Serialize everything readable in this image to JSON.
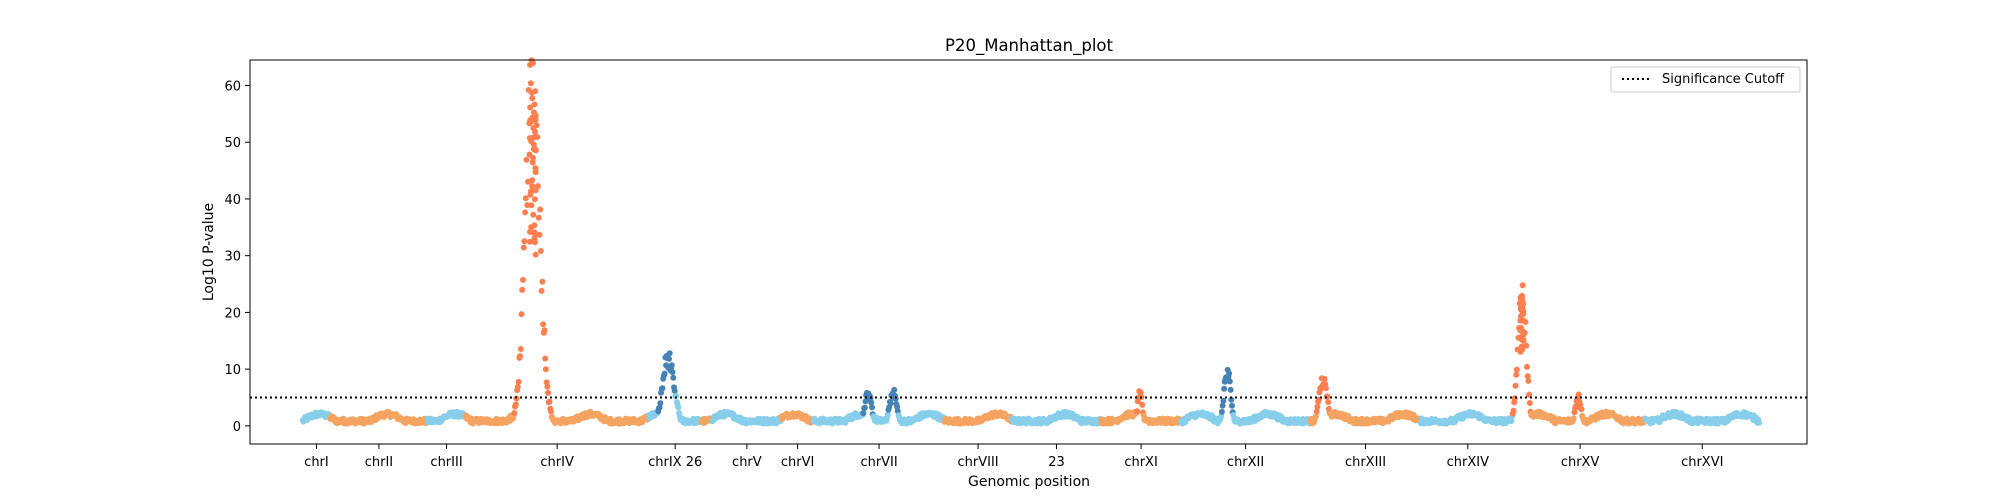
{
  "chart_data": {
    "type": "scatter",
    "title": "P20_Manhattan_plot",
    "xlabel": "Genomic position",
    "ylabel": "Log10 P-value",
    "ylim": [
      -3.2,
      64.5
    ],
    "yticks": [
      0,
      10,
      20,
      30,
      40,
      50,
      60
    ],
    "significance_cutoff": 5,
    "legend": {
      "label": "Significance Cutoff",
      "placement": "top-right"
    },
    "grid": false,
    "colors": {
      "light_blue": "#87ceeb",
      "sandy_orange": "#f4a460",
      "coral": "#ff7f50",
      "steel_blue": "#4682b4",
      "cutoff_line": "#000000"
    },
    "chromosomes": [
      {
        "label": "chrI",
        "start": 0,
        "end": 230,
        "color": "light_blue"
      },
      {
        "label": "chrII",
        "start": 230,
        "end": 1043,
        "color": "sandy_orange"
      },
      {
        "label": "chrIII",
        "start": 1043,
        "end": 1359,
        "color": "light_blue"
      },
      {
        "label": "chrIV",
        "start": 1359,
        "end": 2890,
        "color": "sandy_orange"
      },
      {
        "label": "chrIX 26",
        "start": 2890,
        "end": 3330,
        "color": "light_blue"
      },
      {
        "label": "",
        "start": 3330,
        "end": 3420,
        "color": "sandy_orange"
      },
      {
        "label": "chrV",
        "start": 3420,
        "end": 3997,
        "color": "light_blue"
      },
      {
        "label": "chrVI",
        "start": 3997,
        "end": 4267,
        "color": "sandy_orange"
      },
      {
        "label": "chrVII",
        "start": 4267,
        "end": 5358,
        "color": "light_blue"
      },
      {
        "label": "chrVIII",
        "start": 5358,
        "end": 5920,
        "color": "sandy_orange"
      },
      {
        "label": "23",
        "start": 5920,
        "end": 6667,
        "color": "light_blue"
      },
      {
        "label": "chrXI",
        "start": 6667,
        "end": 7333,
        "color": "sandy_orange"
      },
      {
        "label": "chrXII",
        "start": 7333,
        "end": 8412,
        "color": "light_blue"
      },
      {
        "label": "chrXIII",
        "start": 8412,
        "end": 9336,
        "color": "sandy_orange"
      },
      {
        "label": "chrXIV",
        "start": 9336,
        "end": 10120,
        "color": "light_blue"
      },
      {
        "label": "chrXV",
        "start": 10120,
        "end": 11211,
        "color": "sandy_orange"
      },
      {
        "label": "chrXVI",
        "start": 11211,
        "end": 12160,
        "color": "light_blue"
      }
    ],
    "peaks": [
      {
        "center": 1920,
        "height": 60,
        "width": 60,
        "color": "coral"
      },
      {
        "center": 3050,
        "height": 12,
        "width": 45,
        "color": "steel_blue"
      },
      {
        "center": 3100,
        "height": 6,
        "width": 30,
        "color": "light_blue"
      },
      {
        "center": 4720,
        "height": 5.5,
        "width": 30,
        "color": "steel_blue"
      },
      {
        "center": 4930,
        "height": 5.8,
        "width": 30,
        "color": "steel_blue"
      },
      {
        "center": 6990,
        "height": 5.5,
        "width": 20,
        "color": "coral"
      },
      {
        "center": 7720,
        "height": 9.5,
        "width": 28,
        "color": "steel_blue"
      },
      {
        "center": 8520,
        "height": 8,
        "width": 35,
        "color": "coral"
      },
      {
        "center": 10180,
        "height": 23,
        "width": 35,
        "color": "coral"
      },
      {
        "center": 10650,
        "height": 5,
        "width": 25,
        "color": "coral"
      }
    ]
  }
}
